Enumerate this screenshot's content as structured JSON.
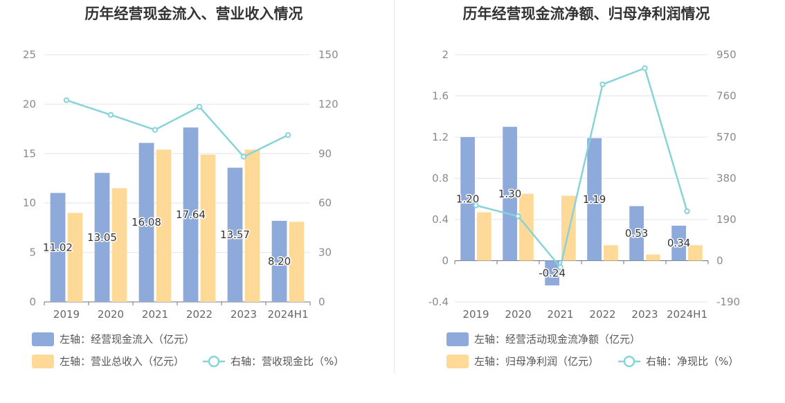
{
  "charts": [
    {
      "title": "历年经营现金流入、营业收入情况",
      "chart_data": {
        "type": "bar",
        "categories": [
          "2019",
          "2020",
          "2021",
          "2022",
          "2023",
          "2024H1"
        ],
        "y_left": {
          "range": [
            0,
            25
          ],
          "ticks": [
            "0",
            "5",
            "10",
            "15",
            "20",
            "25"
          ]
        },
        "y_right": {
          "range": [
            0,
            150
          ],
          "ticks": [
            "0",
            "30",
            "60",
            "90",
            "120",
            "150"
          ]
        },
        "series": [
          {
            "name": "左轴：经营现金流入（亿元）",
            "kind": "bar",
            "axis": "left",
            "color": "#8eaadb",
            "values": [
              11.02,
              13.05,
              16.08,
              17.64,
              13.57,
              8.2
            ],
            "labels": [
              "11.02",
              "13.05",
              "16.08",
              "17.64",
              "13.57",
              "8.20"
            ]
          },
          {
            "name": "左轴：营业总收入（亿元）",
            "kind": "bar",
            "axis": "left",
            "color": "#ffd998",
            "values": [
              9.0,
              11.5,
              15.4,
              14.9,
              15.4,
              8.1
            ]
          },
          {
            "name": "右轴：营收现金比（%）",
            "kind": "line",
            "axis": "right",
            "color": "#86d3d8",
            "values": [
              122.4,
              113.5,
              104.4,
              118.4,
              88.1,
              101.2
            ]
          }
        ],
        "grid": true,
        "legend": "bottom"
      }
    },
    {
      "title": "历年经营现金流净额、归母净利润情况",
      "chart_data": {
        "type": "bar",
        "categories": [
          "2019",
          "2020",
          "2021",
          "2022",
          "2023",
          "2024H1"
        ],
        "y_left": {
          "range": [
            -0.4,
            2
          ],
          "ticks": [
            "-0.4",
            "0",
            "0.4",
            "0.8",
            "1.2",
            "1.6",
            "2"
          ]
        },
        "y_right": {
          "range": [
            -190,
            950
          ],
          "ticks": [
            "-190",
            "0",
            "190",
            "380",
            "570",
            "760",
            "950"
          ]
        },
        "series": [
          {
            "name": "左轴：经营活动现金流净额（亿元）",
            "kind": "bar",
            "axis": "left",
            "color": "#8eaadb",
            "values": [
              1.2,
              1.3,
              -0.24,
              1.19,
              0.53,
              0.34
            ],
            "labels": [
              "1.20",
              "1.30",
              "-0.24",
              "1.19",
              "0.53",
              "0.34"
            ]
          },
          {
            "name": "左轴：归母净利润（亿元）",
            "kind": "bar",
            "axis": "left",
            "color": "#ffd998",
            "values": [
              0.47,
              0.65,
              0.63,
              0.15,
              0.06,
              0.15
            ]
          },
          {
            "name": "右轴：净现比（%）",
            "kind": "line",
            "axis": "right",
            "color": "#86d3d8",
            "values": [
              255,
              205,
              -30,
              813,
              888,
              228
            ]
          }
        ],
        "grid": true,
        "legend": "bottom"
      }
    }
  ]
}
